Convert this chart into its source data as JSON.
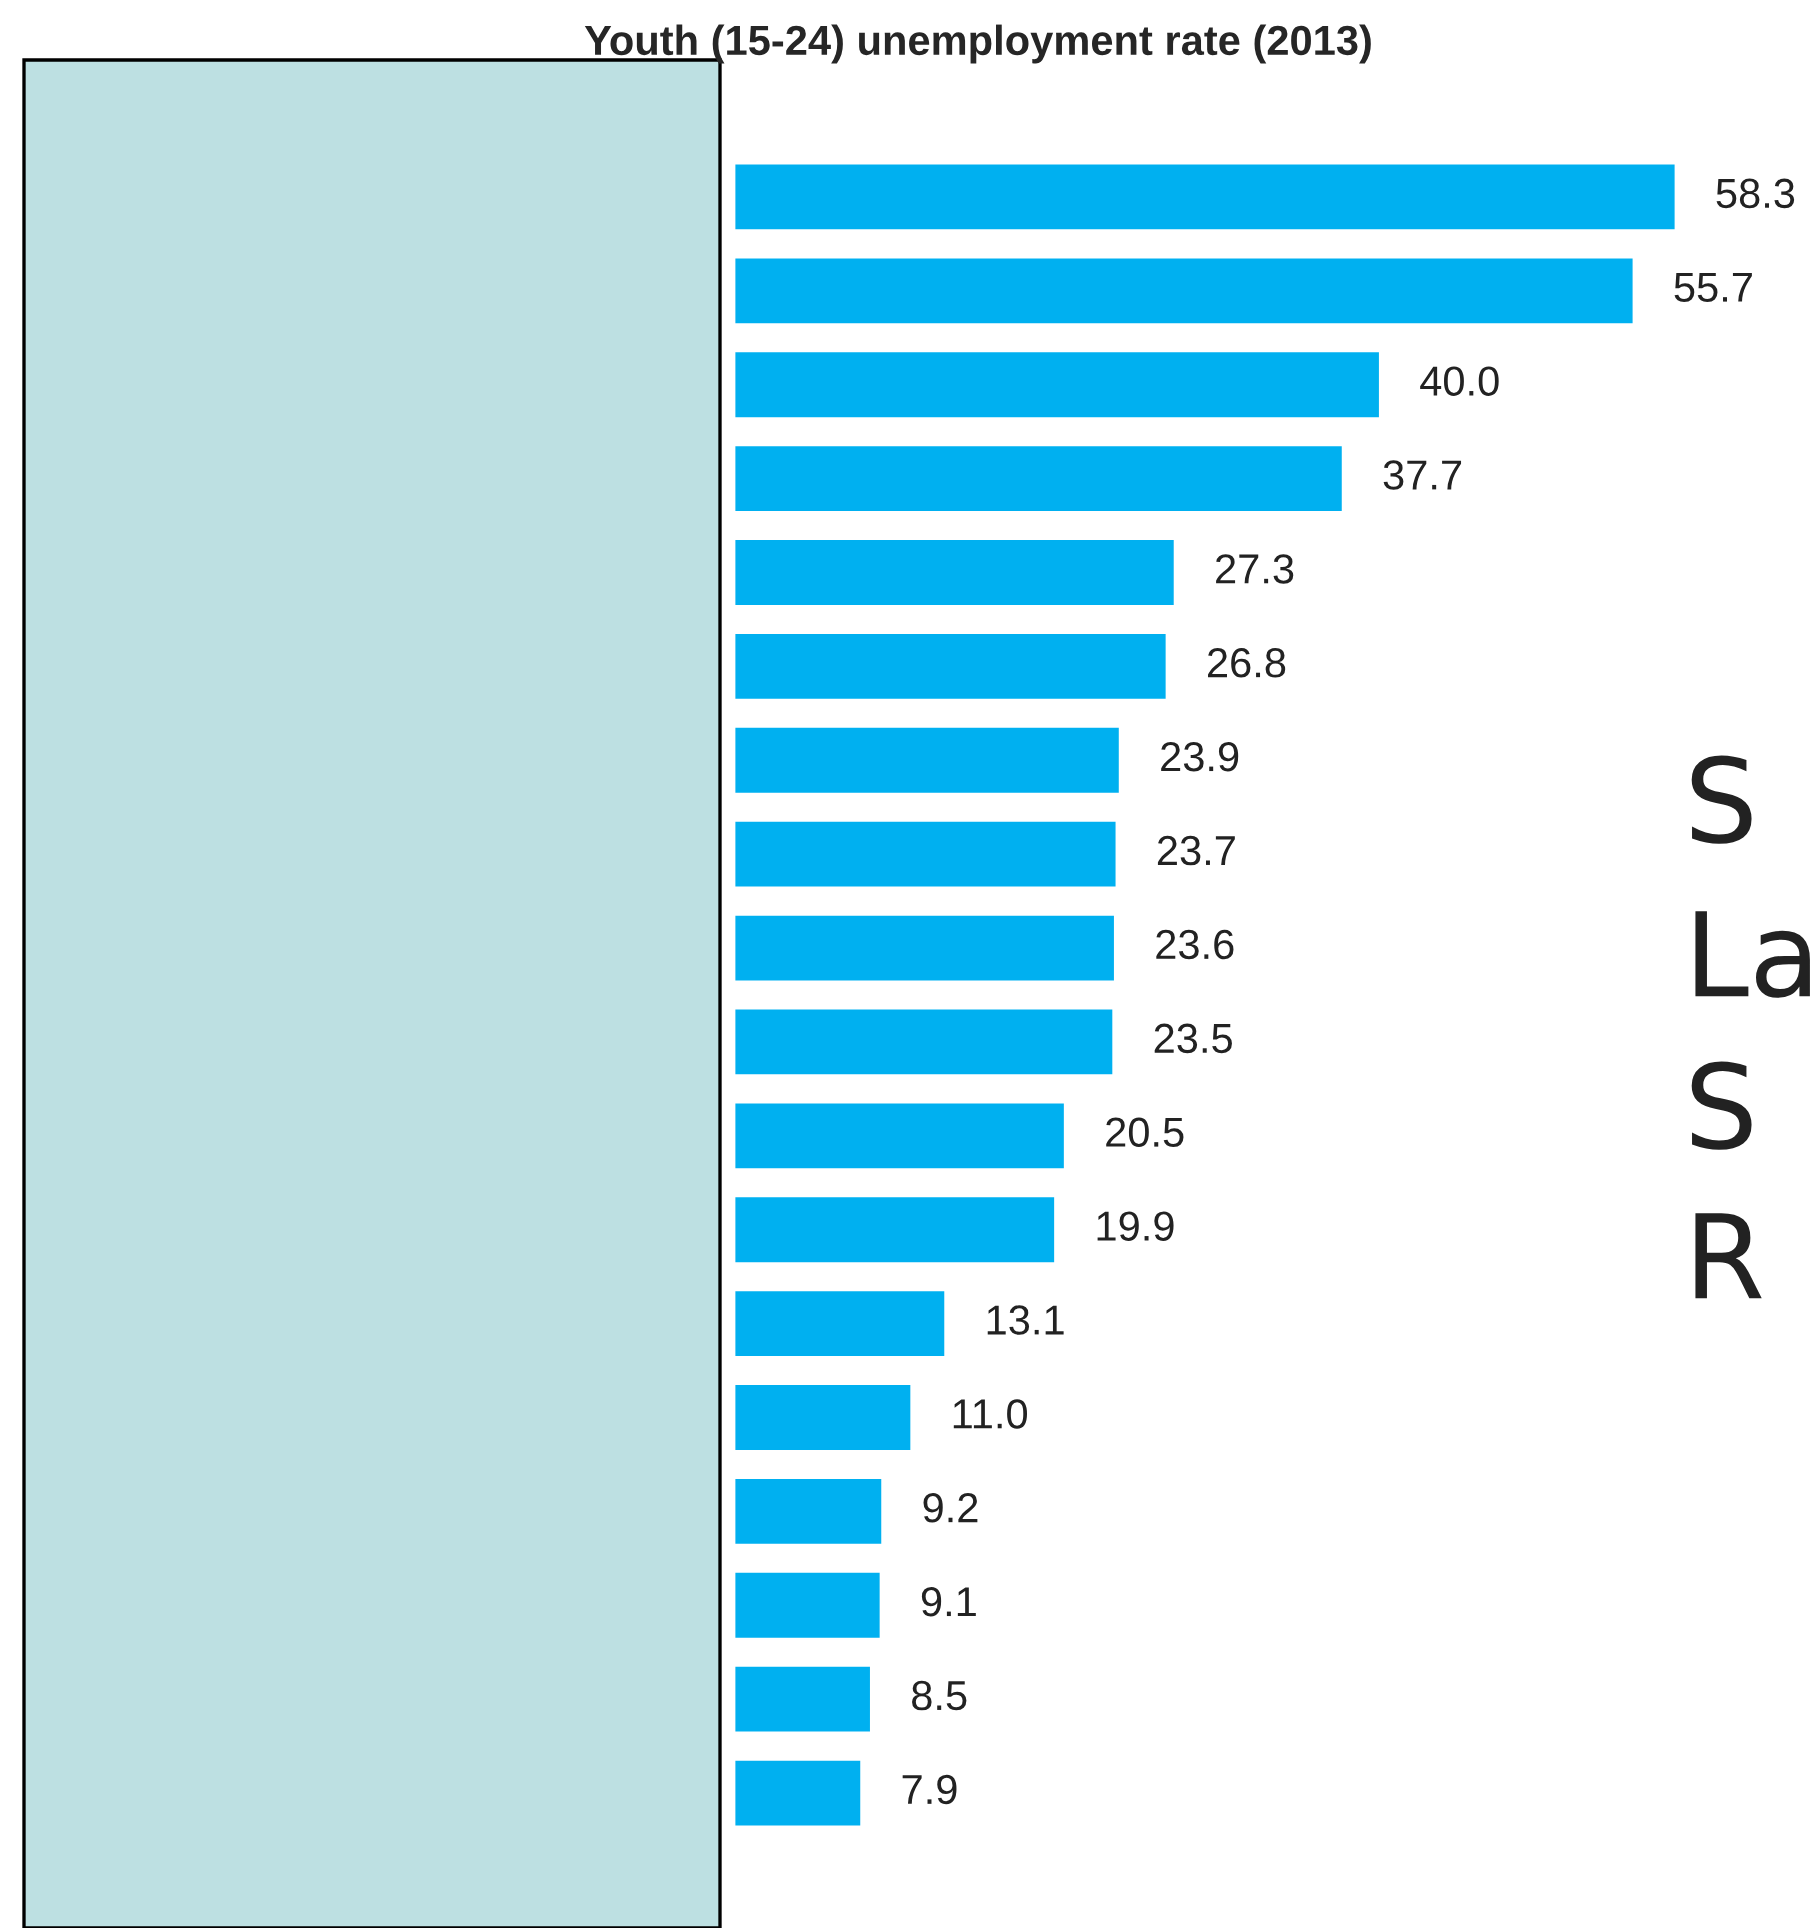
{
  "chart_data": {
    "type": "bar",
    "orientation": "horizontal",
    "title": "Youth (15-24) unemployment rate (2013)",
    "categories": [
      null,
      null,
      null,
      null,
      null,
      null,
      null,
      null,
      null,
      null,
      null,
      null,
      null,
      null,
      null,
      null,
      null,
      null
    ],
    "values": [
      58.3,
      55.7,
      40.0,
      37.7,
      27.3,
      26.8,
      23.9,
      23.7,
      23.6,
      23.5,
      20.5,
      19.9,
      13.1,
      11.0,
      9.2,
      9.1,
      8.5,
      7.9
    ],
    "value_labels": [
      "58.3",
      "55.7",
      "40.0",
      "37.7",
      "27.3",
      "26.8",
      "23.9",
      "23.7",
      "23.6",
      "23.5",
      "20.5",
      "19.9",
      "13.1",
      "11.0",
      "9.2",
      "9.1",
      "8.5",
      "7.9"
    ],
    "color": "#00b0f0",
    "annotations": [
      "S",
      "La",
      "S",
      "R"
    ]
  }
}
